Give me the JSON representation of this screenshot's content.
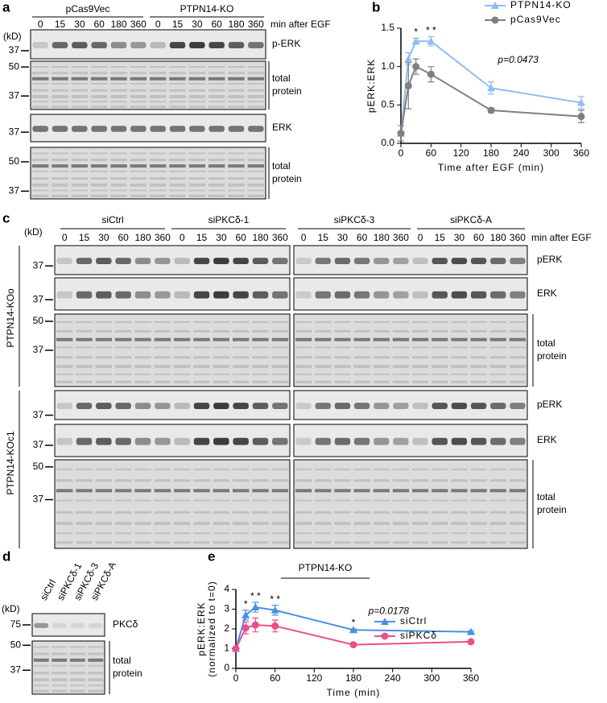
{
  "panels": {
    "a": {
      "label": "a",
      "groups": [
        "pCas9Vec",
        "PTPN14-KO"
      ],
      "timepoints": [
        0,
        15,
        30,
        60,
        180,
        360
      ],
      "time_unit": "min after EGF",
      "kd": "(kD)",
      "rows": [
        {
          "name": "p-ERK",
          "markers": [
            37
          ]
        },
        {
          "name": [
            "total",
            "protein"
          ],
          "markers": [
            50,
            37
          ]
        },
        {
          "name": "ERK",
          "markers": [
            37
          ]
        },
        {
          "name": [
            "total",
            "protein"
          ],
          "markers": [
            50,
            37
          ]
        }
      ]
    },
    "b": {
      "label": "b"
    },
    "c": {
      "label": "c",
      "groups": [
        "siCtrl",
        "siPKCδ-1",
        "siPKCδ-3",
        "siPKCδ-A"
      ],
      "timepoints": [
        0,
        15,
        30,
        60,
        180,
        360
      ],
      "time_unit": "min after EGF",
      "kd": "(kD)",
      "cell_lines": [
        {
          "name": "PTPN14-KOo",
          "rows": [
            {
              "name": "pERK",
              "markers": [
                37
              ]
            },
            {
              "name": "ERK",
              "markers": [
                37
              ]
            },
            {
              "name": [
                "total",
                "protein"
              ],
              "markers": [
                50,
                37
              ]
            }
          ]
        },
        {
          "name": "PTPN14-KOc1",
          "rows": [
            {
              "name": "pERK",
              "markers": [
                37
              ]
            },
            {
              "name": "ERK",
              "markers": [
                37
              ]
            },
            {
              "name": [
                "total",
                "protein"
              ],
              "markers": [
                50,
                37
              ]
            }
          ]
        }
      ]
    },
    "d": {
      "label": "d",
      "lanes": [
        "siCtrl",
        "siPKCδ-1",
        "siPKCδ-3",
        "siPKCδ-A"
      ],
      "kd": "(kD)",
      "rows": [
        {
          "name": "PKCδ",
          "markers": [
            75
          ]
        },
        {
          "name": [
            "total",
            "protein"
          ],
          "markers": [
            50,
            37
          ]
        }
      ]
    },
    "e": {
      "label": "e"
    }
  },
  "chart_data": [
    {
      "type": "line",
      "xlabel": "Time after EGF (min)",
      "ylabel": "pERK:ERK",
      "annotation": "p=0.0473",
      "x": [
        0,
        15,
        30,
        60,
        180,
        360
      ],
      "xlim": [
        0,
        360
      ],
      "xticks": [
        0,
        60,
        120,
        180,
        240,
        300,
        360
      ],
      "ylim": [
        0,
        1.5
      ],
      "yticks": [
        {
          "value": 0,
          "label": "0.0"
        },
        0.5,
        {
          "value": 1,
          "label": "1.0"
        },
        1.5
      ],
      "legend": "top-right",
      "significance": [
        null,
        null,
        "*",
        "* *",
        null,
        null
      ],
      "series": [
        {
          "name": "PTPN14-KO",
          "color": "#8fbdf0",
          "marker": "triangle",
          "values": [
            0.13,
            1.1,
            1.33,
            1.33,
            0.72,
            0.53
          ],
          "errors": [
            0.03,
            0.08,
            0.04,
            0.06,
            0.08,
            0.08
          ]
        },
        {
          "name": "pCas9Vec",
          "color": "#808080",
          "marker": "circle",
          "values": [
            0.13,
            0.75,
            1.0,
            0.9,
            0.43,
            0.35
          ],
          "errors": [
            0.1,
            0.3,
            0.1,
            0.1,
            0.03,
            0.08
          ]
        }
      ]
    },
    {
      "type": "line",
      "subtitle": "PTPN14-KO",
      "xlabel": "Time (min)",
      "ylabel": [
        "pERK:ERK",
        "(normalized to t=0)"
      ],
      "annotation": "p=0.0178",
      "x": [
        0,
        15,
        30,
        60,
        180,
        360
      ],
      "xlim": [
        0,
        360
      ],
      "xticks": [
        0,
        60,
        120,
        180,
        240,
        300,
        360
      ],
      "ylim": [
        0,
        4
      ],
      "yticks": [
        0,
        1,
        2,
        3,
        4
      ],
      "legend": "bottom-right",
      "significance": [
        null,
        "*",
        "* *",
        "* *",
        "*",
        null
      ],
      "series": [
        {
          "name": "siCtrl",
          "color": "#4a90e2",
          "marker": "triangle",
          "values": [
            1,
            2.7,
            3.1,
            2.95,
            1.95,
            1.85
          ],
          "errors": [
            0.05,
            0.25,
            0.25,
            0.25,
            0.05,
            0.05
          ]
        },
        {
          "name": "siPKCδ",
          "color": "#e8508a",
          "marker": "circle",
          "values": [
            1,
            2.05,
            2.2,
            2.15,
            1.2,
            1.35
          ],
          "errors": [
            0.05,
            0.3,
            0.35,
            0.3,
            0.05,
            0.05
          ]
        }
      ]
    }
  ]
}
